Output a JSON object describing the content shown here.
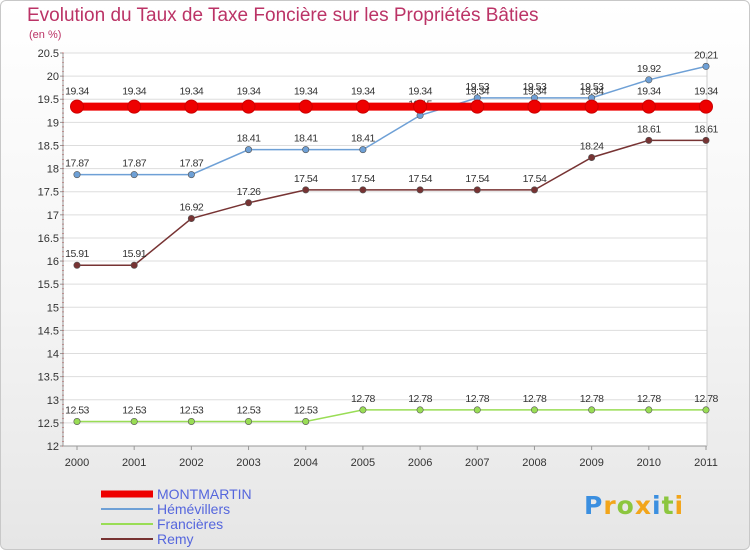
{
  "chart_data": {
    "type": "line",
    "title": "Evolution du Taux de Taxe Foncière sur les Propriétés Bâties",
    "ylabel": "(en %)",
    "xlabel": "",
    "ylim": [
      12,
      20.5
    ],
    "yticks": [
      "12",
      "12.5",
      "13",
      "13.5",
      "14",
      "14.5",
      "15",
      "15.5",
      "16",
      "16.5",
      "17",
      "17.5",
      "18",
      "18.5",
      "19",
      "19.5",
      "20",
      "20.5"
    ],
    "categories": [
      "2000",
      "2001",
      "2002",
      "2003",
      "2004",
      "2005",
      "2006",
      "2007",
      "2008",
      "2009",
      "2010",
      "2011"
    ],
    "legend_position": "bottom-left",
    "series": [
      {
        "name": "MONTMARTIN",
        "color": "#ee0000",
        "values": [
          19.34,
          19.34,
          19.34,
          19.34,
          19.34,
          19.34,
          19.34,
          19.34,
          19.34,
          19.34,
          19.34,
          19.34
        ],
        "labels": [
          "19.34",
          "19.34",
          "19.34",
          "19.34",
          "19.34",
          "19.34",
          "19.34",
          "19.34",
          "19.34",
          "19.34",
          "19.34",
          "19.34"
        ]
      },
      {
        "name": "Hémévillers",
        "color": "#6ea0d6",
        "values": [
          17.87,
          17.87,
          17.87,
          18.41,
          18.41,
          18.41,
          19.15,
          19.53,
          19.53,
          19.53,
          19.92,
          20.21
        ],
        "labels": [
          "17.87",
          "17.87",
          "17.87",
          "18.41",
          "18.41",
          "18.41",
          "19.15",
          "19.53",
          "19.53",
          "19.53",
          "19.92",
          "20.21"
        ]
      },
      {
        "name": "Francières",
        "color": "#99dd55",
        "values": [
          12.53,
          12.53,
          12.53,
          12.53,
          12.53,
          12.78,
          12.78,
          12.78,
          12.78,
          12.78,
          12.78,
          12.78
        ],
        "labels": [
          "12.53",
          "12.53",
          "12.53",
          "12.53",
          "12.53",
          "12.78",
          "12.78",
          "12.78",
          "12.78",
          "12.78",
          "12.78",
          "12.78"
        ]
      },
      {
        "name": "Remy",
        "color": "#773333",
        "values": [
          15.91,
          15.91,
          16.92,
          17.26,
          17.54,
          17.54,
          17.54,
          17.54,
          17.54,
          18.24,
          18.61,
          18.61
        ],
        "labels": [
          "15.91",
          "15.91",
          "16.92",
          "17.26",
          "17.54",
          "17.54",
          "17.54",
          "17.54",
          "17.54",
          "18.24",
          "18.61",
          "18.61"
        ]
      }
    ]
  },
  "logo": {
    "letters": [
      "P",
      "r",
      "o",
      "x",
      "i",
      "t",
      "i"
    ],
    "colors": [
      "#3b8fe0",
      "#f2a51a",
      "#8cc63f",
      "#f2a51a",
      "#3b8fe0",
      "#8cc63f",
      "#f2a51a"
    ]
  }
}
